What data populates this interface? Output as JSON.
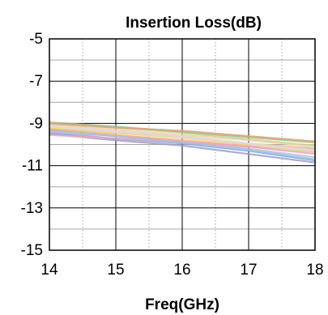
{
  "chart_data": {
    "type": "line",
    "title": "Insertion Loss(dB)",
    "xlabel": "Freq(GHz)",
    "ylabel": "",
    "xlim": [
      14,
      18
    ],
    "ylim": [
      -15,
      -5
    ],
    "x_ticks": [
      14,
      15,
      16,
      17,
      18
    ],
    "y_ticks": [
      -5,
      -7,
      -9,
      -11,
      -13,
      -15
    ],
    "x_tick_labels": [
      "14",
      "15",
      "16",
      "17",
      "18"
    ],
    "y_tick_labels": [
      "-5",
      "-7",
      "-9",
      "-11",
      "-13",
      "-15"
    ],
    "grid": {
      "major_x": [
        15,
        16,
        17
      ],
      "minor_x": [
        14.5,
        15.5,
        16.5,
        17.5
      ],
      "major_y": [
        -7,
        -9,
        -11,
        -13
      ],
      "minor_y": [
        -6,
        -8,
        -10,
        -12,
        -14
      ]
    },
    "legend": "none",
    "x": [
      14,
      15,
      16,
      17,
      18
    ],
    "series": [
      {
        "color": "#9c9ec4",
        "values": [
          -9.5,
          -9.8,
          -10.05,
          -10.45,
          -10.85
        ]
      },
      {
        "color": "#7da7d9",
        "values": [
          -9.45,
          -9.72,
          -9.95,
          -10.3,
          -10.75
        ]
      },
      {
        "color": "#a8c6e8",
        "values": [
          -9.3,
          -9.55,
          -9.85,
          -10.2,
          -10.6
        ]
      },
      {
        "color": "#f4b183",
        "values": [
          -9.35,
          -9.55,
          -9.8,
          -10.05,
          -10.35
        ]
      },
      {
        "color": "#ed9c75",
        "values": [
          -9.25,
          -9.45,
          -9.65,
          -9.95,
          -10.2
        ]
      },
      {
        "color": "#f2a8b8",
        "values": [
          -9.55,
          -9.7,
          -9.9,
          -10.1,
          -10.35
        ]
      },
      {
        "color": "#ffd966",
        "values": [
          -9.2,
          -9.45,
          -9.7,
          -10.0,
          -10.4
        ]
      },
      {
        "color": "#c9e2f5",
        "values": [
          -9.1,
          -9.35,
          -9.6,
          -9.95,
          -10.3
        ]
      },
      {
        "color": "#d9d9d9",
        "values": [
          -9.15,
          -9.4,
          -9.65,
          -9.95,
          -10.25
        ]
      },
      {
        "color": "#b4d99a",
        "values": [
          -9.0,
          -9.2,
          -9.45,
          -9.75,
          -10.05
        ]
      },
      {
        "color": "#e7a6d2",
        "values": [
          -9.4,
          -9.6,
          -9.85,
          -10.1,
          -10.45
        ]
      },
      {
        "color": "#f8cbad",
        "values": [
          -9.05,
          -9.3,
          -9.55,
          -9.8,
          -10.1
        ]
      },
      {
        "color": "#93c47d",
        "values": [
          -8.95,
          -9.15,
          -9.4,
          -9.65,
          -9.9
        ]
      },
      {
        "color": "#e8a070",
        "values": [
          -9.0,
          -9.2,
          -9.35,
          -9.6,
          -9.85
        ]
      },
      {
        "color": "#9dc3e6",
        "values": [
          -9.35,
          -9.6,
          -9.9,
          -10.25,
          -10.7
        ]
      }
    ]
  }
}
